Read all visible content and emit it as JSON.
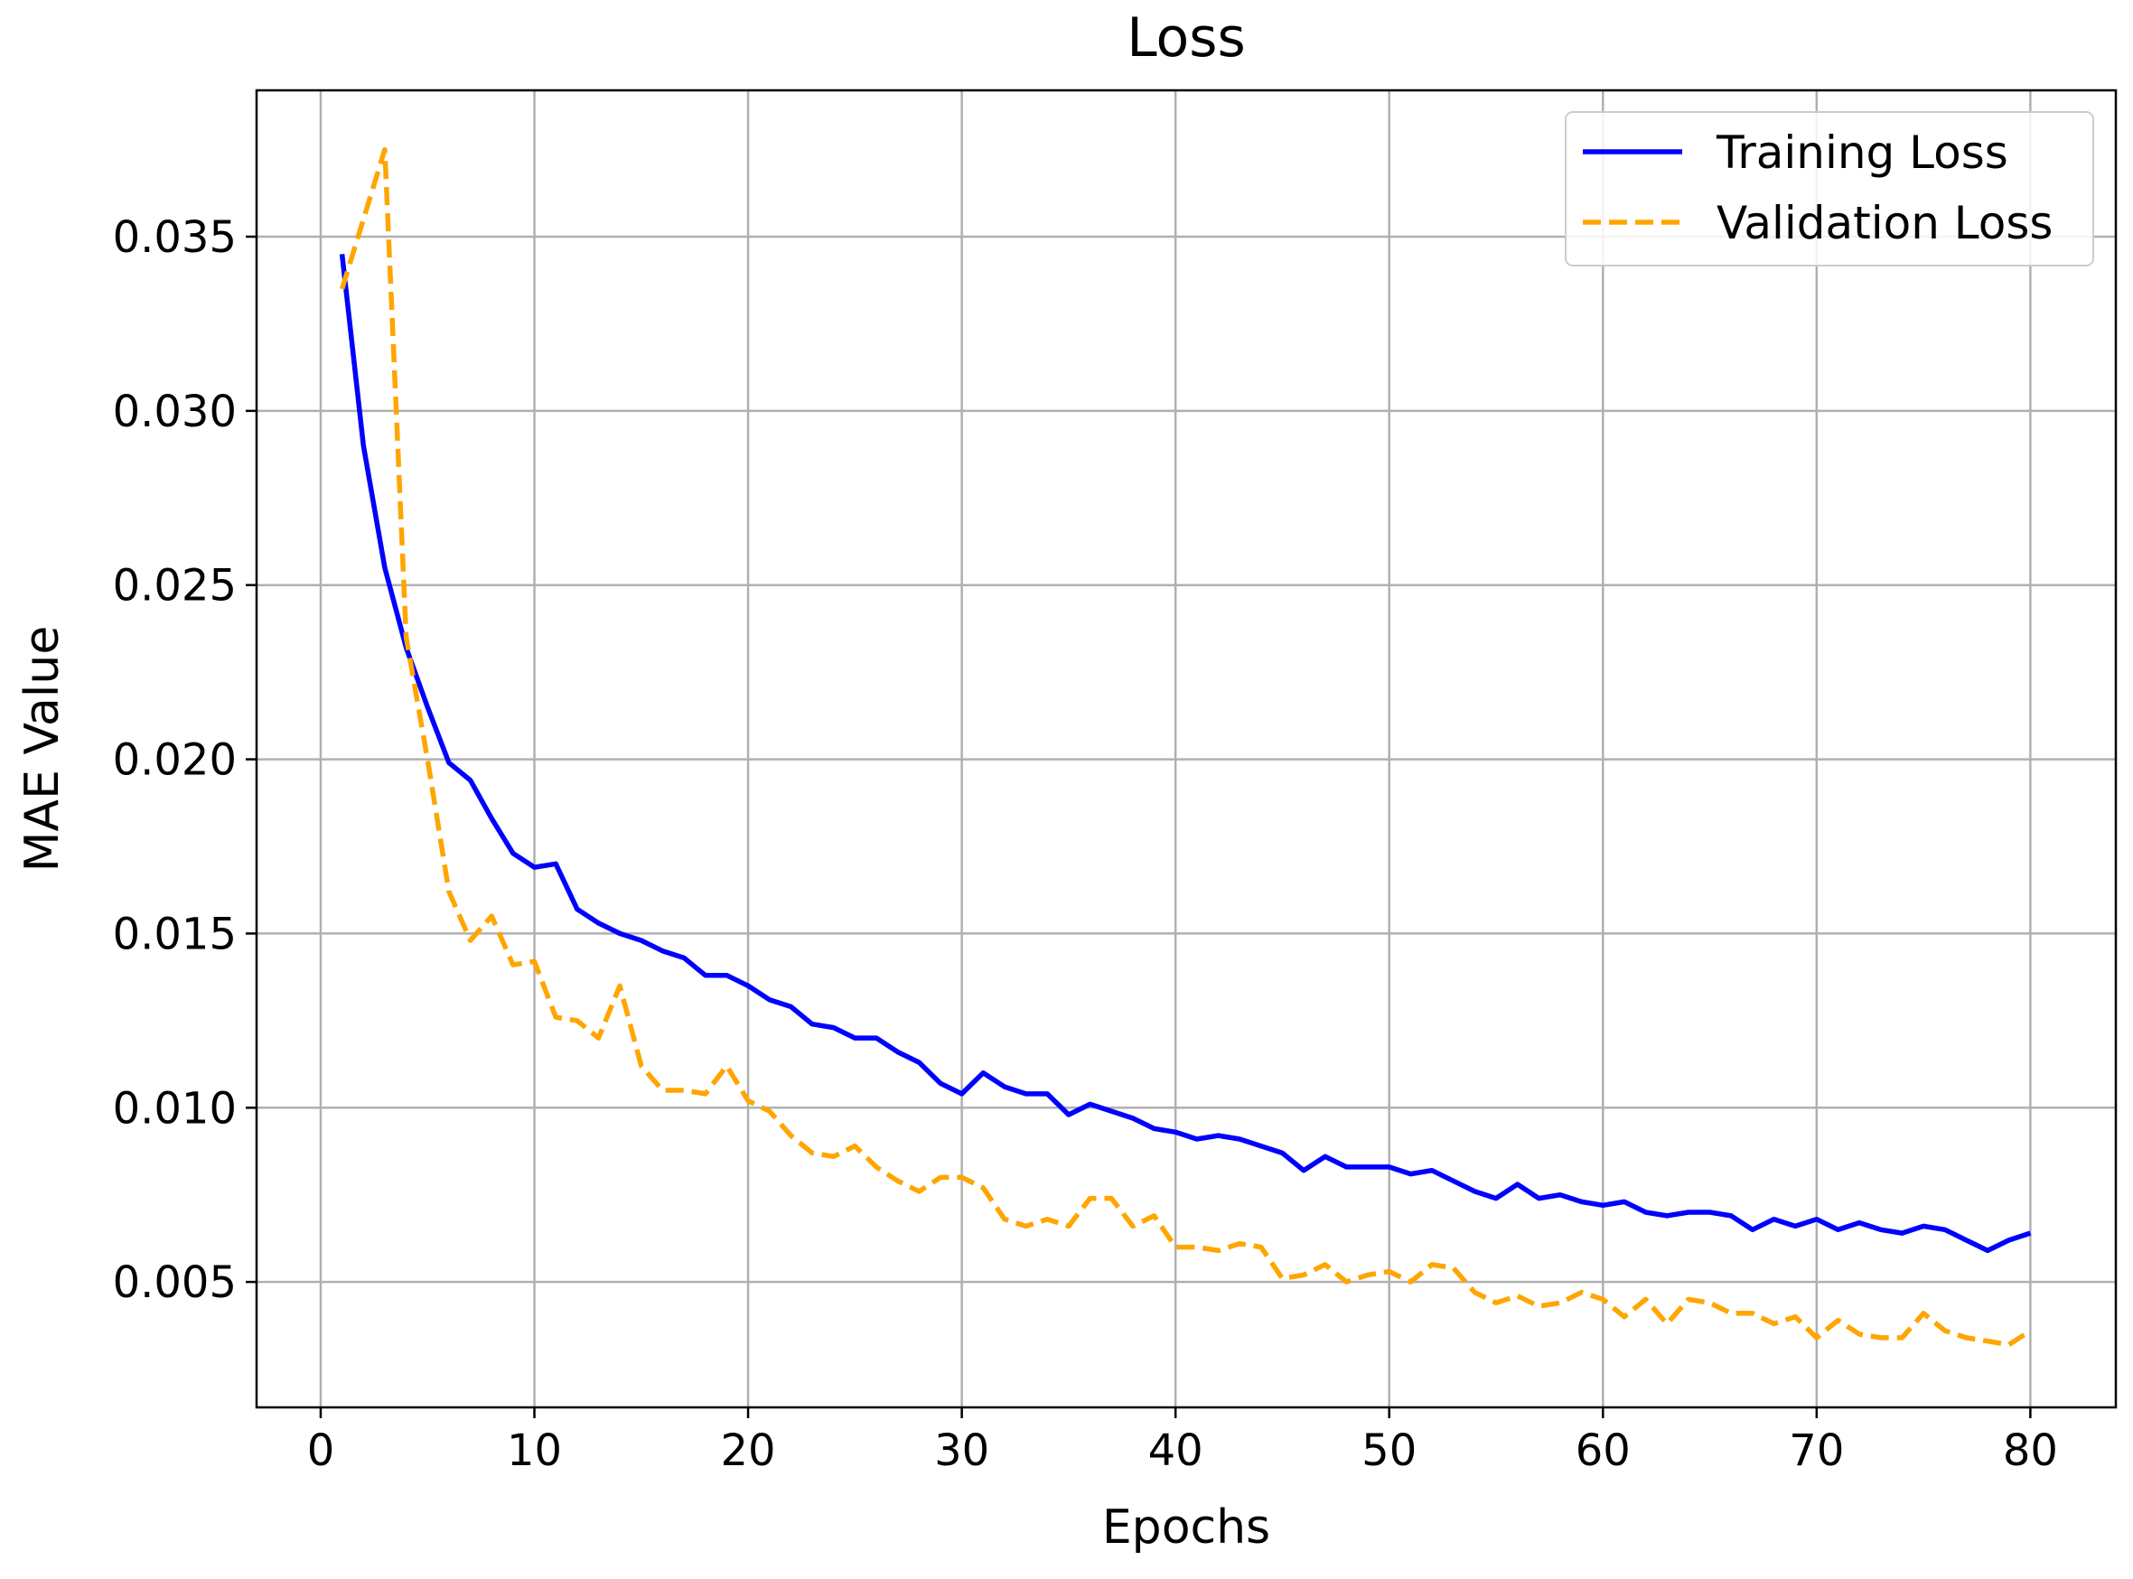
{
  "chart_data": {
    "type": "line",
    "title": "Loss",
    "xlabel": "Epochs",
    "ylabel": "MAE Value",
    "xlim": [
      -3,
      84
    ],
    "ylim": [
      0.0014,
      0.0392
    ],
    "xticks": [
      0,
      10,
      20,
      30,
      40,
      50,
      60,
      70,
      80
    ],
    "yticks": [
      0.005,
      0.01,
      0.015,
      0.02,
      0.025,
      0.03,
      0.035
    ],
    "xtick_labels": [
      "0",
      "10",
      "20",
      "30",
      "40",
      "50",
      "60",
      "70",
      "80"
    ],
    "ytick_labels": [
      "0.005",
      "0.010",
      "0.015",
      "0.020",
      "0.025",
      "0.030",
      "0.035"
    ],
    "grid": true,
    "legend_position": "top-right",
    "x": [
      1,
      2,
      3,
      4,
      5,
      6,
      7,
      8,
      9,
      10,
      11,
      12,
      13,
      14,
      15,
      16,
      17,
      18,
      19,
      20,
      21,
      22,
      23,
      24,
      25,
      26,
      27,
      28,
      29,
      30,
      31,
      32,
      33,
      34,
      35,
      36,
      37,
      38,
      39,
      40,
      41,
      42,
      43,
      44,
      45,
      46,
      47,
      48,
      49,
      50,
      51,
      52,
      53,
      54,
      55,
      56,
      57,
      58,
      59,
      60,
      61,
      62,
      63,
      64,
      65,
      66,
      67,
      68,
      69,
      70,
      71,
      72,
      73,
      74,
      75,
      76,
      77,
      78,
      79,
      80
    ],
    "series": [
      {
        "name": "Training Loss",
        "color": "#0000ff",
        "style": "solid",
        "values": [
          0.0345,
          0.029,
          0.0255,
          0.0232,
          0.0215,
          0.0199,
          0.0194,
          0.0183,
          0.0173,
          0.0169,
          0.017,
          0.0157,
          0.0153,
          0.015,
          0.0148,
          0.0145,
          0.0143,
          0.0138,
          0.0138,
          0.0135,
          0.0131,
          0.0129,
          0.0124,
          0.0123,
          0.012,
          0.012,
          0.0116,
          0.0113,
          0.0107,
          0.0104,
          0.011,
          0.0106,
          0.0104,
          0.0104,
          0.0098,
          0.0101,
          0.0099,
          0.0097,
          0.0094,
          0.0093,
          0.0091,
          0.0092,
          0.0091,
          0.0089,
          0.0087,
          0.0082,
          0.0086,
          0.0083,
          0.0083,
          0.0083,
          0.0081,
          0.0082,
          0.0079,
          0.0076,
          0.0074,
          0.0078,
          0.0074,
          0.0075,
          0.0073,
          0.0072,
          0.0073,
          0.007,
          0.0069,
          0.007,
          0.007,
          0.0069,
          0.0065,
          0.0068,
          0.0066,
          0.0068,
          0.0065,
          0.0067,
          0.0065,
          0.0064,
          0.0066,
          0.0065,
          0.0062,
          0.0059,
          0.0062,
          0.0064
        ]
      },
      {
        "name": "Validation Loss",
        "color": "#ffa500",
        "style": "dashed",
        "values": [
          0.0335,
          0.0355,
          0.0375,
          0.0235,
          0.02,
          0.0162,
          0.0148,
          0.0155,
          0.0141,
          0.0142,
          0.0126,
          0.0125,
          0.012,
          0.0135,
          0.0112,
          0.0105,
          0.0105,
          0.0104,
          0.0112,
          0.0102,
          0.0099,
          0.0092,
          0.0087,
          0.0086,
          0.0089,
          0.0083,
          0.0079,
          0.0076,
          0.008,
          0.008,
          0.0077,
          0.0068,
          0.0066,
          0.0068,
          0.0066,
          0.0074,
          0.0074,
          0.0066,
          0.0069,
          0.006,
          0.006,
          0.0059,
          0.0061,
          0.006,
          0.0051,
          0.0052,
          0.0055,
          0.005,
          0.0052,
          0.0053,
          0.005,
          0.0055,
          0.0054,
          0.0047,
          0.0044,
          0.0046,
          0.0043,
          0.0044,
          0.0047,
          0.0045,
          0.004,
          0.0045,
          0.0038,
          0.0045,
          0.0044,
          0.0041,
          0.0041,
          0.0038,
          0.004,
          0.0034,
          0.0039,
          0.0035,
          0.0034,
          0.0034,
          0.0041,
          0.0036,
          0.0034,
          0.0033,
          0.0032,
          0.0036
        ]
      }
    ]
  }
}
